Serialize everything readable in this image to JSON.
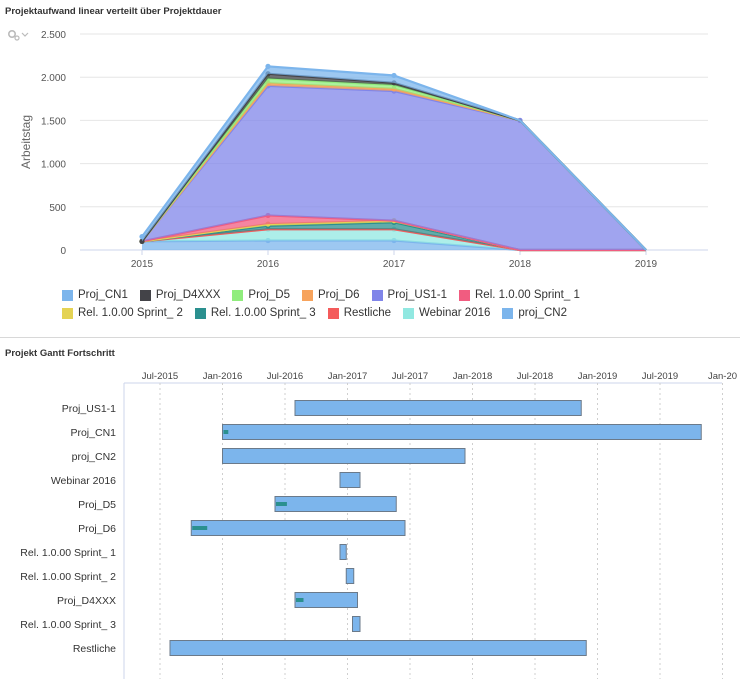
{
  "panel1": {
    "title": "Projektaufwand linear verteilt über Projektdauer",
    "settings_icon": "gear-icon"
  },
  "panel2": {
    "title": "Projekt Gantt Fortschritt"
  },
  "chart_data": [
    {
      "type": "area",
      "stacked": true,
      "ylabel": "Arbeitstag",
      "ylim": [
        0,
        2500
      ],
      "y_ticks": [
        0,
        500,
        1000,
        1500,
        2000,
        2500
      ],
      "y_tick_labels": [
        "0",
        "500",
        "1.000",
        "1.500",
        "2.000",
        "2.500"
      ],
      "categories": [
        "2015",
        "2016",
        "2017",
        "2018",
        "2019"
      ],
      "grid": true,
      "legend_position": "bottom",
      "series": [
        {
          "name": "Proj_CN1",
          "color": "#7cb5ec",
          "values": [
            55,
            85,
            85,
            0,
            0
          ]
        },
        {
          "name": "Proj_D4XXX",
          "color": "#434348",
          "values": [
            0,
            55,
            25,
            0,
            0
          ]
        },
        {
          "name": "Proj_D5",
          "color": "#90ed7d",
          "values": [
            0,
            55,
            45,
            0,
            0
          ]
        },
        {
          "name": "Proj_D6",
          "color": "#f7a35c",
          "values": [
            0,
            30,
            25,
            0,
            0
          ]
        },
        {
          "name": "Proj_US1-1",
          "color": "#8085e9",
          "values": [
            0,
            1500,
            1500,
            1500,
            0
          ]
        },
        {
          "name": "Rel. 1.0.00 Sprint_ 1",
          "color": "#f15c80",
          "values": [
            0,
            100,
            0,
            0,
            0
          ]
        },
        {
          "name": "Rel. 1.0.00 Sprint_ 2",
          "color": "#e4d354",
          "values": [
            0,
            20,
            20,
            0,
            0
          ]
        },
        {
          "name": "Rel. 1.0.00 Sprint_ 3",
          "color": "#2b908f",
          "values": [
            0,
            40,
            80,
            0,
            0
          ]
        },
        {
          "name": "Restliche",
          "color": "#f45b5b",
          "values": [
            0,
            0,
            0,
            0,
            0
          ]
        },
        {
          "name": "Webinar 2016",
          "color": "#91e8e1",
          "values": [
            0,
            130,
            130,
            0,
            0
          ]
        },
        {
          "name": "proj_CN2",
          "color": "#7cb5ec",
          "values": [
            100,
            110,
            110,
            0,
            0
          ]
        }
      ]
    },
    {
      "type": "gantt",
      "x_tick_labels": [
        "Jul-2015",
        "Jan-2016",
        "Jul-2016",
        "Jan-2017",
        "Jul-2017",
        "Jan-2018",
        "Jul-2018",
        "Jan-2019",
        "Jul-2019",
        "Jan-20"
      ],
      "x_ticks": [
        2015.5,
        2016.0,
        2016.5,
        2017.0,
        2017.5,
        2018.0,
        2018.5,
        2019.0,
        2019.5,
        2020.0
      ],
      "xlim": [
        2015.2,
        2020.0
      ],
      "grid": true,
      "bar_color": "#7cb5ec",
      "progress_color": "#2b908f",
      "tasks": [
        {
          "name": "Proj_US1-1",
          "start": 2016.58,
          "end": 2018.87,
          "progress": 0
        },
        {
          "name": "Proj_CN1",
          "start": 2016.0,
          "end": 2019.83,
          "progress": 0.01
        },
        {
          "name": "proj_CN2",
          "start": 2016.0,
          "end": 2017.94,
          "progress": 0
        },
        {
          "name": "Webinar 2016",
          "start": 2016.94,
          "end": 2017.1,
          "progress": 0
        },
        {
          "name": "Proj_D5",
          "start": 2016.42,
          "end": 2017.39,
          "progress": 0.09
        },
        {
          "name": "Proj_D6",
          "start": 2015.75,
          "end": 2017.46,
          "progress": 0.07
        },
        {
          "name": "Rel. 1.0.00 Sprint_ 1",
          "start": 2016.94,
          "end": 2016.99,
          "progress": 0
        },
        {
          "name": "Rel. 1.0.00 Sprint_ 2",
          "start": 2016.99,
          "end": 2017.05,
          "progress": 0
        },
        {
          "name": "Proj_D4XXX",
          "start": 2016.58,
          "end": 2017.08,
          "progress": 0.12
        },
        {
          "name": "Rel. 1.0.00 Sprint_ 3",
          "start": 2017.04,
          "end": 2017.1,
          "progress": 0
        },
        {
          "name": "Restliche",
          "start": 2015.58,
          "end": 2018.91,
          "progress": 0
        }
      ]
    }
  ]
}
